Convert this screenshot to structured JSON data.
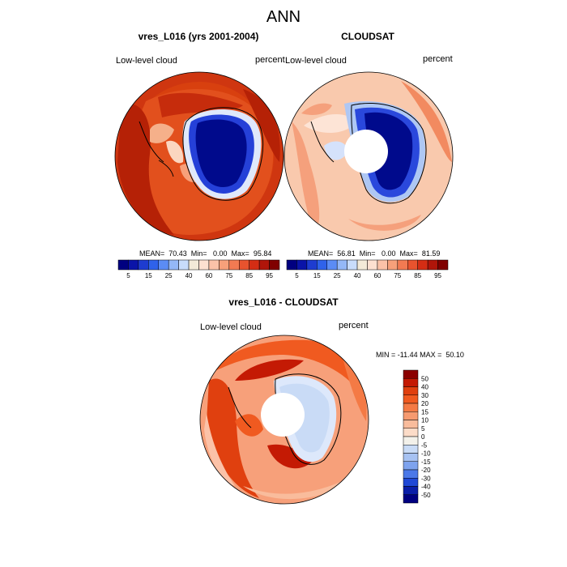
{
  "figure": {
    "title": "ANN"
  },
  "panels": [
    {
      "title": "vres_L016 (yrs 2001-2004)",
      "left_label": "Low-level cloud",
      "right_label": "percent",
      "stats": "MEAN=  70.43  Min=   0.00  Max=  95.84",
      "mean": 70.43,
      "min": 0.0,
      "max": 95.84
    },
    {
      "title": "CLOUDSAT",
      "left_label": "Low-level cloud",
      "right_label": "percent",
      "stats": "MEAN=  56.81  Min=   0.00  Max=  81.59",
      "mean": 56.81,
      "min": 0.0,
      "max": 81.59
    },
    {
      "title": "vres_L016 - CLOUDSAT",
      "left_label": "Low-level cloud",
      "right_label": "percent",
      "stats": "MIN = -11.44 MAX =  50.10",
      "min": -11.44,
      "max": 50.1
    }
  ],
  "colorbar_abs": {
    "tick_labels": [
      "5",
      "15",
      "25",
      "40",
      "60",
      "75",
      "85",
      "95"
    ],
    "colors": [
      "#000080",
      "#0a14a8",
      "#1e3cd0",
      "#2f62ea",
      "#5b8cf5",
      "#94b8f7",
      "#c8dcfb",
      "#f3ead8",
      "#fde0d0",
      "#fbc2a8",
      "#f7a07a",
      "#f27a52",
      "#e8532e",
      "#d42d14",
      "#b0150a",
      "#800000"
    ]
  },
  "colorbar_diff": {
    "tick_labels": [
      "50",
      "40",
      "30",
      "20",
      "15",
      "10",
      "5",
      "0",
      "-5",
      "-10",
      "-15",
      "-20",
      "-30",
      "-40",
      "-50"
    ],
    "colors": [
      "#8b0000",
      "#c41a04",
      "#e0400f",
      "#f05a20",
      "#f47a45",
      "#f69a70",
      "#f9bc9c",
      "#fcdcc8",
      "#f3f1ea",
      "#c9dbf6",
      "#a7c2f2",
      "#7ea3ee",
      "#4b78e8",
      "#1f48d6",
      "#0a1ea8",
      "#000080"
    ]
  }
}
